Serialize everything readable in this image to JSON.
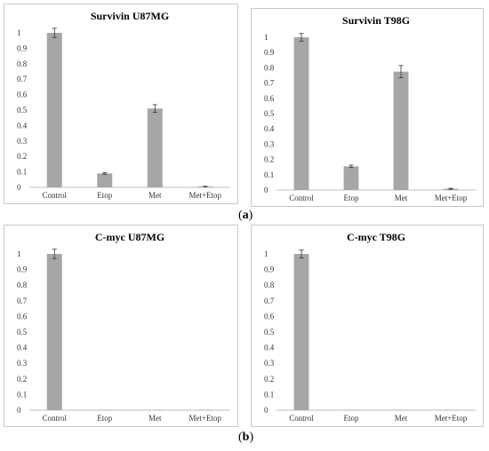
{
  "figure": {
    "panel_label_a": "a",
    "panel_label_b": "b"
  },
  "chart_data": [
    {
      "type": "bar",
      "title": "Survivin U87MG",
      "categories": [
        "Control",
        "Etop",
        "Met",
        "Met+Etop"
      ],
      "values": [
        1.0,
        0.09,
        0.51,
        0.005
      ],
      "errors": [
        0.03,
        0.005,
        0.025,
        0.002
      ],
      "ylim": [
        0,
        1
      ],
      "yticks": [
        "0",
        "0.1",
        "0.2",
        "0.3",
        "0.4",
        "0.5",
        "0.6",
        "0.7",
        "0.8",
        "0.9",
        "1"
      ],
      "bar_color": "#a6a6a6",
      "grid": false
    },
    {
      "type": "bar",
      "title": "Survivin T98G",
      "categories": [
        "Control",
        "Etop",
        "Met",
        "Met+Etop"
      ],
      "values": [
        1.0,
        0.155,
        0.775,
        0.008
      ],
      "errors": [
        0.025,
        0.008,
        0.04,
        0.003
      ],
      "ylim": [
        0,
        1
      ],
      "yticks": [
        "0",
        "0.1",
        "0.2",
        "0.3",
        "0.4",
        "0.5",
        "0.6",
        "0.7",
        "0.8",
        "0.9",
        "1"
      ],
      "bar_color": "#a6a6a6",
      "grid": false
    },
    {
      "type": "bar",
      "title": "C-myc U87MG",
      "categories": [
        "Control",
        "Etop",
        "Met",
        "Met+Etop"
      ],
      "values": [
        1.0,
        0.002,
        0.002,
        0.002
      ],
      "errors": [
        0.03,
        0,
        0,
        0
      ],
      "ylim": [
        0,
        1
      ],
      "yticks": [
        "0",
        "0.1",
        "0.2",
        "0.3",
        "0.4",
        "0.5",
        "0.6",
        "0.7",
        "0.8",
        "0.9",
        "1"
      ],
      "bar_color": "#a6a6a6",
      "grid": false
    },
    {
      "type": "bar",
      "title": "C-myc T98G",
      "categories": [
        "Control",
        "Etop",
        "Met",
        "Met+Etop"
      ],
      "values": [
        1.0,
        0.002,
        0.002,
        0.002
      ],
      "errors": [
        0.025,
        0,
        0,
        0
      ],
      "ylim": [
        0,
        1
      ],
      "yticks": [
        "0",
        "0.1",
        "0.2",
        "0.3",
        "0.4",
        "0.5",
        "0.6",
        "0.7",
        "0.8",
        "0.9",
        "1"
      ],
      "bar_color": "#a6a6a6",
      "grid": false
    }
  ]
}
